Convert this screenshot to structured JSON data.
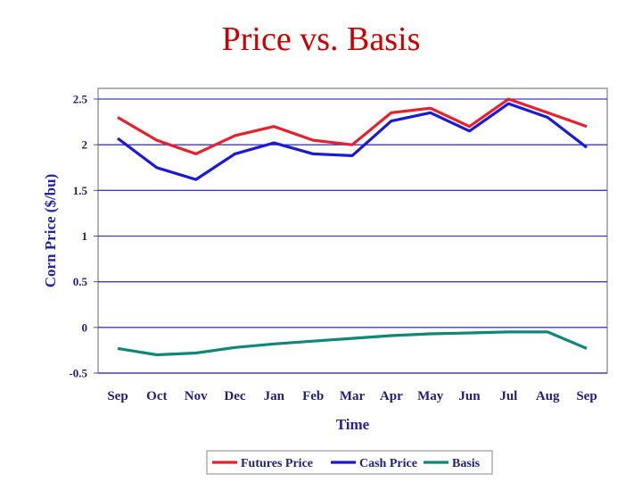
{
  "slide": {
    "title": "Price vs. Basis"
  },
  "chart_data": {
    "type": "line",
    "title": "",
    "xlabel": "Time",
    "ylabel": "Corn Price ($/bu)",
    "categories": [
      "Sep",
      "Oct",
      "Nov",
      "Dec",
      "Jan",
      "Feb",
      "Mar",
      "Apr",
      "May",
      "Jun",
      "Jul",
      "Aug",
      "Sep"
    ],
    "ylim": [
      -0.5,
      2.5
    ],
    "yticks": [
      -0.5,
      0,
      0.5,
      1,
      1.5,
      2,
      2.5
    ],
    "ytick_labels": [
      "-0.5",
      "0",
      "0.5",
      "1",
      "1.5",
      "2",
      "2.5"
    ],
    "grid": true,
    "legend_position": "bottom",
    "series": [
      {
        "name": "Futures Price",
        "color": "#e8202a",
        "values": [
          2.3,
          2.05,
          1.9,
          2.1,
          2.2,
          2.05,
          2.0,
          2.35,
          2.4,
          2.2,
          2.5,
          2.35,
          2.2
        ]
      },
      {
        "name": "Cash Price",
        "color": "#1a1ad6",
        "values": [
          2.07,
          1.75,
          1.62,
          1.9,
          2.02,
          1.9,
          1.88,
          2.26,
          2.35,
          2.15,
          2.45,
          2.3,
          1.97
        ]
      },
      {
        "name": "Basis",
        "color": "#108878",
        "values": [
          -0.23,
          -0.3,
          -0.28,
          -0.22,
          -0.18,
          -0.15,
          -0.12,
          -0.09,
          -0.07,
          -0.06,
          -0.05,
          -0.05,
          -0.23
        ]
      }
    ]
  }
}
